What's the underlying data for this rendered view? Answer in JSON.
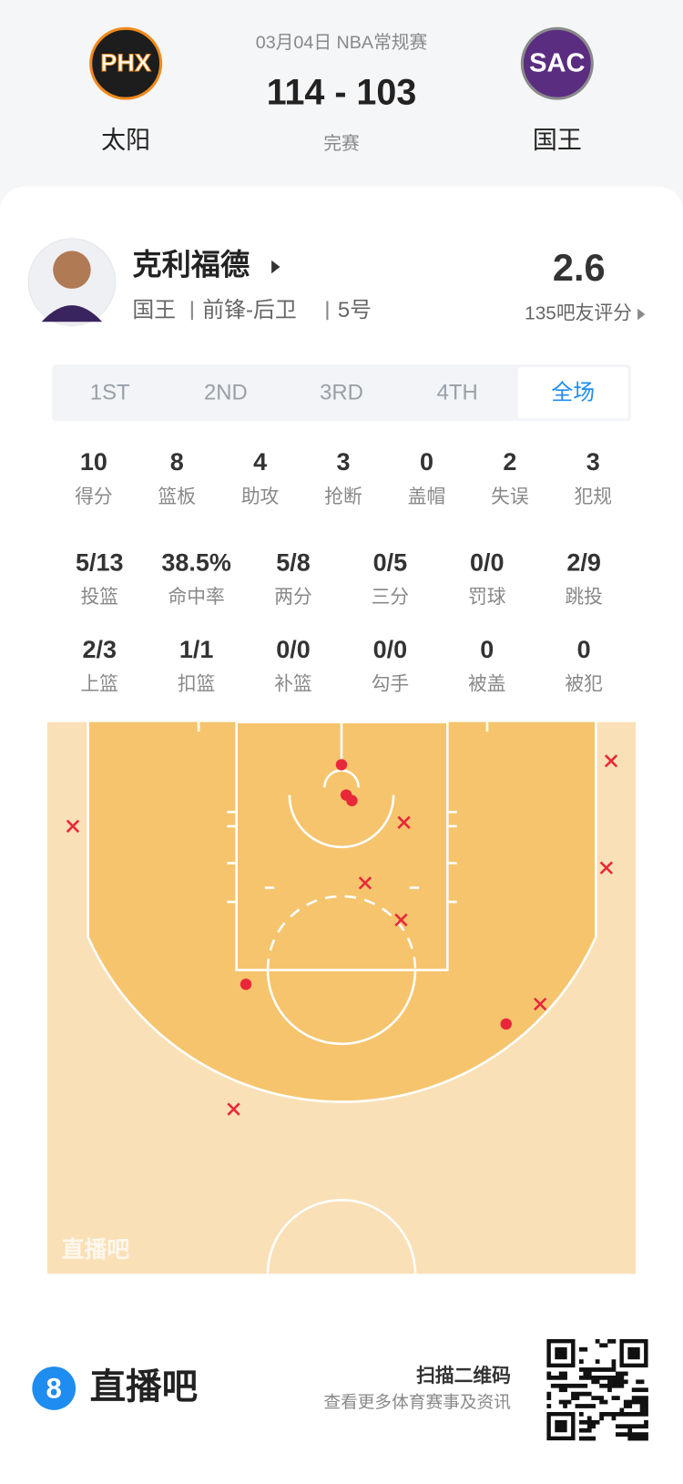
{
  "header": {
    "date": "03月04日 NBA常规赛",
    "score": "114 - 103",
    "status": "完赛",
    "home": {
      "logo": "PHX",
      "name": "太阳"
    },
    "away": {
      "logo": "SAC",
      "name": "国王"
    }
  },
  "player": {
    "name": "克利福德",
    "team": "国王",
    "position": "前锋-后卫",
    "number": "5号",
    "rating": "2.6",
    "rating_label": "135吧友评分"
  },
  "tabs": {
    "items": [
      "1ST",
      "2ND",
      "3RD",
      "4TH",
      "全场"
    ],
    "active": 4
  },
  "stats": [
    [
      {
        "value": "10",
        "label": "得分"
      },
      {
        "value": "8",
        "label": "篮板"
      },
      {
        "value": "4",
        "label": "助攻"
      },
      {
        "value": "3",
        "label": "抢断"
      },
      {
        "value": "0",
        "label": "盖帽"
      },
      {
        "value": "2",
        "label": "失误"
      },
      {
        "value": "3",
        "label": "犯规"
      }
    ],
    [
      {
        "value": "5/13",
        "label": "投篮"
      },
      {
        "value": "38.5%",
        "label": "命中率"
      },
      {
        "value": "5/8",
        "label": "两分"
      },
      {
        "value": "0/5",
        "label": "三分"
      },
      {
        "value": "0/0",
        "label": "罚球"
      },
      {
        "value": "2/9",
        "label": "跳投"
      }
    ],
    [
      {
        "value": "2/3",
        "label": "上篮"
      },
      {
        "value": "1/1",
        "label": "扣篮"
      },
      {
        "value": "0/0",
        "label": "补篮"
      },
      {
        "value": "0/0",
        "label": "勾手"
      },
      {
        "value": "0",
        "label": "被盖"
      },
      {
        "value": "0",
        "label": "被犯"
      }
    ]
  ],
  "court": {
    "watermark": "直播吧"
  },
  "footer": {
    "badge": "8",
    "brand": "直播吧",
    "scan": "扫描二维码",
    "subtitle": "查看更多体育赛事及资讯"
  }
}
